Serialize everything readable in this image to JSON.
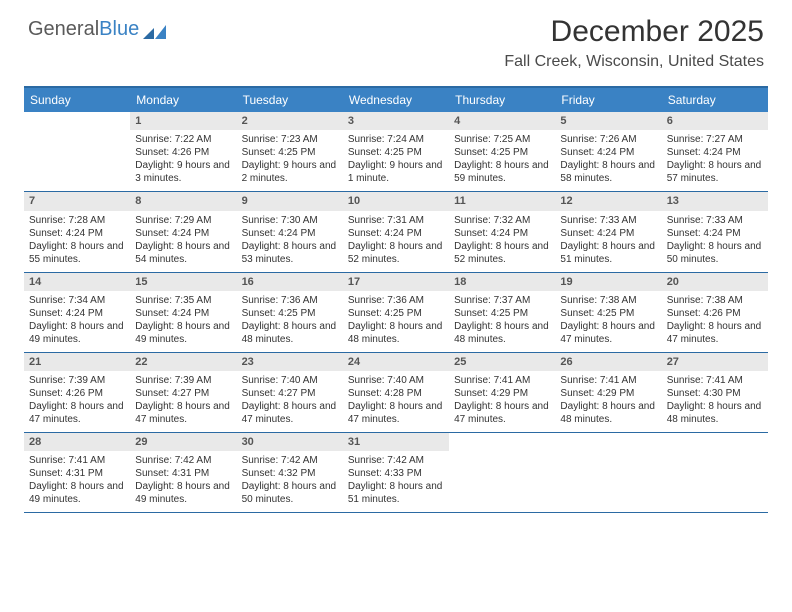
{
  "brand": {
    "part1": "General",
    "part2": "Blue"
  },
  "title": "December 2025",
  "location": "Fall Creek, Wisconsin, United States",
  "day_headers": [
    "Sunday",
    "Monday",
    "Tuesday",
    "Wednesday",
    "Thursday",
    "Friday",
    "Saturday"
  ],
  "colors": {
    "header_bg": "#3a82c4",
    "rule": "#2b6aa3",
    "date_bg": "#e9e9e9"
  },
  "weeks": [
    [
      null,
      {
        "n": "1",
        "sr": "Sunrise: 7:22 AM",
        "ss": "Sunset: 4:26 PM",
        "dl": "Daylight: 9 hours and 3 minutes."
      },
      {
        "n": "2",
        "sr": "Sunrise: 7:23 AM",
        "ss": "Sunset: 4:25 PM",
        "dl": "Daylight: 9 hours and 2 minutes."
      },
      {
        "n": "3",
        "sr": "Sunrise: 7:24 AM",
        "ss": "Sunset: 4:25 PM",
        "dl": "Daylight: 9 hours and 1 minute."
      },
      {
        "n": "4",
        "sr": "Sunrise: 7:25 AM",
        "ss": "Sunset: 4:25 PM",
        "dl": "Daylight: 8 hours and 59 minutes."
      },
      {
        "n": "5",
        "sr": "Sunrise: 7:26 AM",
        "ss": "Sunset: 4:24 PM",
        "dl": "Daylight: 8 hours and 58 minutes."
      },
      {
        "n": "6",
        "sr": "Sunrise: 7:27 AM",
        "ss": "Sunset: 4:24 PM",
        "dl": "Daylight: 8 hours and 57 minutes."
      }
    ],
    [
      {
        "n": "7",
        "sr": "Sunrise: 7:28 AM",
        "ss": "Sunset: 4:24 PM",
        "dl": "Daylight: 8 hours and 55 minutes."
      },
      {
        "n": "8",
        "sr": "Sunrise: 7:29 AM",
        "ss": "Sunset: 4:24 PM",
        "dl": "Daylight: 8 hours and 54 minutes."
      },
      {
        "n": "9",
        "sr": "Sunrise: 7:30 AM",
        "ss": "Sunset: 4:24 PM",
        "dl": "Daylight: 8 hours and 53 minutes."
      },
      {
        "n": "10",
        "sr": "Sunrise: 7:31 AM",
        "ss": "Sunset: 4:24 PM",
        "dl": "Daylight: 8 hours and 52 minutes."
      },
      {
        "n": "11",
        "sr": "Sunrise: 7:32 AM",
        "ss": "Sunset: 4:24 PM",
        "dl": "Daylight: 8 hours and 52 minutes."
      },
      {
        "n": "12",
        "sr": "Sunrise: 7:33 AM",
        "ss": "Sunset: 4:24 PM",
        "dl": "Daylight: 8 hours and 51 minutes."
      },
      {
        "n": "13",
        "sr": "Sunrise: 7:33 AM",
        "ss": "Sunset: 4:24 PM",
        "dl": "Daylight: 8 hours and 50 minutes."
      }
    ],
    [
      {
        "n": "14",
        "sr": "Sunrise: 7:34 AM",
        "ss": "Sunset: 4:24 PM",
        "dl": "Daylight: 8 hours and 49 minutes."
      },
      {
        "n": "15",
        "sr": "Sunrise: 7:35 AM",
        "ss": "Sunset: 4:24 PM",
        "dl": "Daylight: 8 hours and 49 minutes."
      },
      {
        "n": "16",
        "sr": "Sunrise: 7:36 AM",
        "ss": "Sunset: 4:25 PM",
        "dl": "Daylight: 8 hours and 48 minutes."
      },
      {
        "n": "17",
        "sr": "Sunrise: 7:36 AM",
        "ss": "Sunset: 4:25 PM",
        "dl": "Daylight: 8 hours and 48 minutes."
      },
      {
        "n": "18",
        "sr": "Sunrise: 7:37 AM",
        "ss": "Sunset: 4:25 PM",
        "dl": "Daylight: 8 hours and 48 minutes."
      },
      {
        "n": "19",
        "sr": "Sunrise: 7:38 AM",
        "ss": "Sunset: 4:25 PM",
        "dl": "Daylight: 8 hours and 47 minutes."
      },
      {
        "n": "20",
        "sr": "Sunrise: 7:38 AM",
        "ss": "Sunset: 4:26 PM",
        "dl": "Daylight: 8 hours and 47 minutes."
      }
    ],
    [
      {
        "n": "21",
        "sr": "Sunrise: 7:39 AM",
        "ss": "Sunset: 4:26 PM",
        "dl": "Daylight: 8 hours and 47 minutes."
      },
      {
        "n": "22",
        "sr": "Sunrise: 7:39 AM",
        "ss": "Sunset: 4:27 PM",
        "dl": "Daylight: 8 hours and 47 minutes."
      },
      {
        "n": "23",
        "sr": "Sunrise: 7:40 AM",
        "ss": "Sunset: 4:27 PM",
        "dl": "Daylight: 8 hours and 47 minutes."
      },
      {
        "n": "24",
        "sr": "Sunrise: 7:40 AM",
        "ss": "Sunset: 4:28 PM",
        "dl": "Daylight: 8 hours and 47 minutes."
      },
      {
        "n": "25",
        "sr": "Sunrise: 7:41 AM",
        "ss": "Sunset: 4:29 PM",
        "dl": "Daylight: 8 hours and 47 minutes."
      },
      {
        "n": "26",
        "sr": "Sunrise: 7:41 AM",
        "ss": "Sunset: 4:29 PM",
        "dl": "Daylight: 8 hours and 48 minutes."
      },
      {
        "n": "27",
        "sr": "Sunrise: 7:41 AM",
        "ss": "Sunset: 4:30 PM",
        "dl": "Daylight: 8 hours and 48 minutes."
      }
    ],
    [
      {
        "n": "28",
        "sr": "Sunrise: 7:41 AM",
        "ss": "Sunset: 4:31 PM",
        "dl": "Daylight: 8 hours and 49 minutes."
      },
      {
        "n": "29",
        "sr": "Sunrise: 7:42 AM",
        "ss": "Sunset: 4:31 PM",
        "dl": "Daylight: 8 hours and 49 minutes."
      },
      {
        "n": "30",
        "sr": "Sunrise: 7:42 AM",
        "ss": "Sunset: 4:32 PM",
        "dl": "Daylight: 8 hours and 50 minutes."
      },
      {
        "n": "31",
        "sr": "Sunrise: 7:42 AM",
        "ss": "Sunset: 4:33 PM",
        "dl": "Daylight: 8 hours and 51 minutes."
      },
      null,
      null,
      null
    ]
  ]
}
